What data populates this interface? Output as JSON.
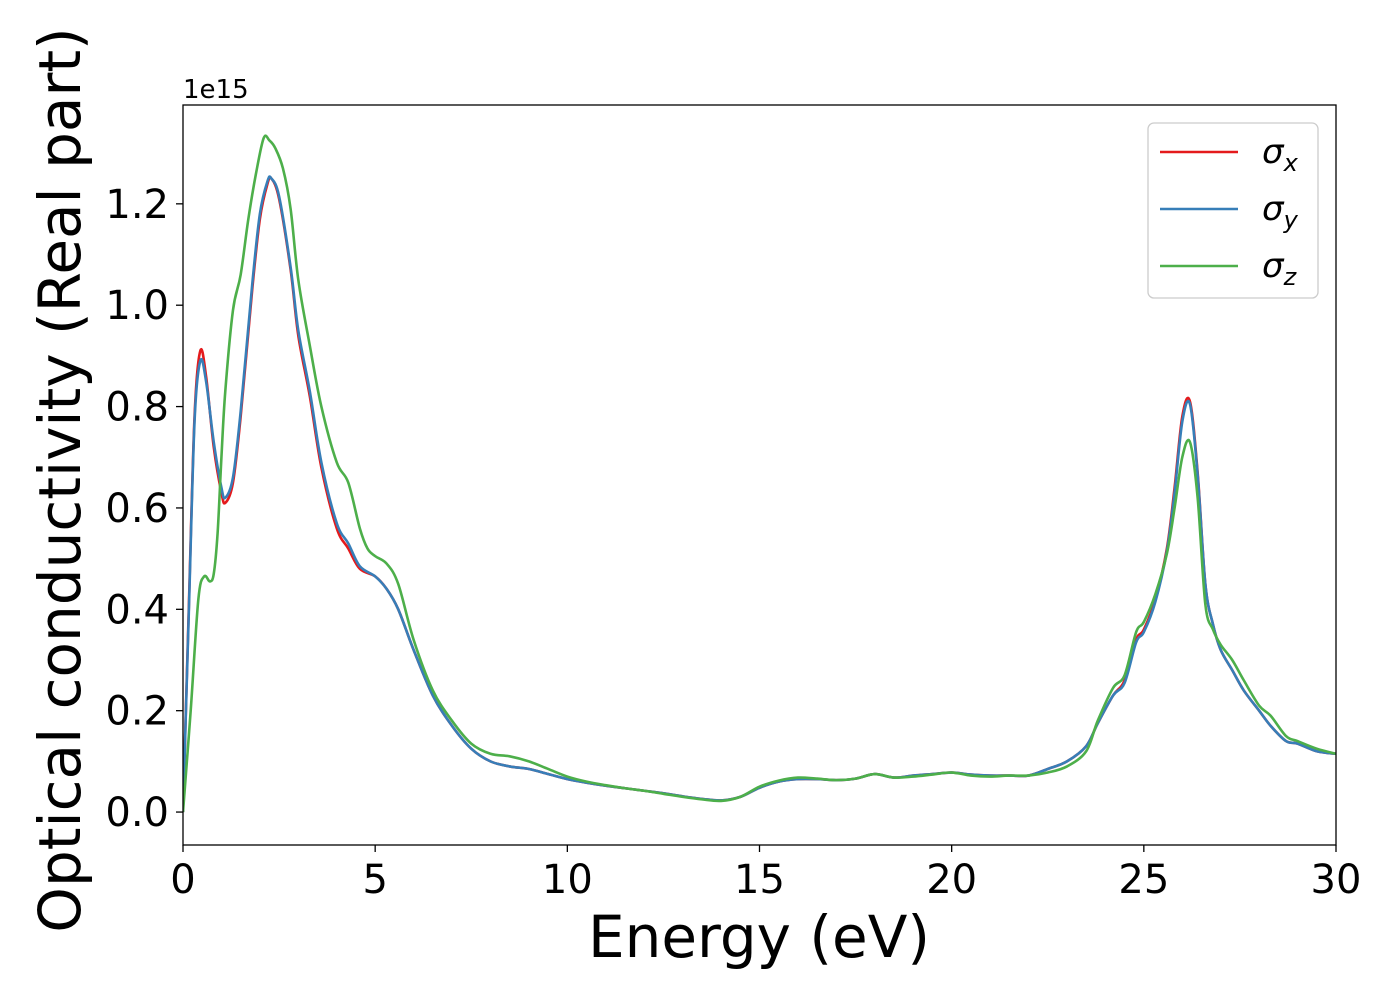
{
  "chart_data": {
    "type": "line",
    "xlabel": "Energy (eV)",
    "ylabel": "Optical conductivity (Real part)",
    "offset_label": "1e15",
    "xlim": [
      0,
      30
    ],
    "ylim": [
      -0.065,
      1.395
    ],
    "xticks": [
      0,
      5,
      10,
      15,
      20,
      25,
      30
    ],
    "xtick_labels": [
      "0",
      "5",
      "10",
      "15",
      "20",
      "25",
      "30"
    ],
    "yticks": [
      0.0,
      0.2,
      0.4,
      0.6,
      0.8,
      1.0,
      1.2
    ],
    "ytick_labels": [
      "0.0",
      "0.2",
      "0.4",
      "0.6",
      "0.8",
      "1.0",
      "1.2"
    ],
    "grid": false,
    "legend_position": "top-right",
    "series": [
      {
        "name": "σx",
        "symbol": "σ",
        "subscript": "x",
        "color": "#e41a1c",
        "x": [
          0,
          0.15,
          0.3,
          0.45,
          0.6,
          0.8,
          1.0,
          1.1,
          1.3,
          1.5,
          1.8,
          2.0,
          2.2,
          2.3,
          2.5,
          2.8,
          3.0,
          3.3,
          3.6,
          4.0,
          4.3,
          4.6,
          5.0,
          5.3,
          5.6,
          6.0,
          6.5,
          7.0,
          7.5,
          8.0,
          8.5,
          9.0,
          9.5,
          10.0,
          10.5,
          11,
          11.5,
          12,
          12.5,
          13,
          13.5,
          14,
          14.5,
          15,
          15.5,
          16,
          16.5,
          17,
          17.5,
          18,
          18.5,
          19,
          19.5,
          20,
          20.5,
          21,
          21.5,
          22,
          22.5,
          23,
          23.5,
          23.8,
          24.2,
          24.5,
          24.8,
          25.0,
          25.3,
          25.6,
          25.8,
          26.0,
          26.2,
          26.4,
          26.6,
          26.8,
          27.0,
          27.3,
          27.6,
          28.0,
          28.3,
          28.7,
          29.0,
          29.5,
          30
        ],
        "y": [
          0,
          0.4,
          0.78,
          0.91,
          0.86,
          0.72,
          0.63,
          0.61,
          0.65,
          0.78,
          1.03,
          1.17,
          1.24,
          1.25,
          1.21,
          1.07,
          0.94,
          0.82,
          0.68,
          0.56,
          0.52,
          0.48,
          0.465,
          0.44,
          0.4,
          0.32,
          0.23,
          0.17,
          0.125,
          0.1,
          0.09,
          0.085,
          0.075,
          0.065,
          0.058,
          0.052,
          0.047,
          0.042,
          0.037,
          0.031,
          0.026,
          0.023,
          0.03,
          0.048,
          0.06,
          0.065,
          0.065,
          0.063,
          0.066,
          0.075,
          0.068,
          0.072,
          0.075,
          0.078,
          0.074,
          0.072,
          0.072,
          0.072,
          0.085,
          0.1,
          0.13,
          0.175,
          0.23,
          0.26,
          0.34,
          0.36,
          0.42,
          0.52,
          0.64,
          0.78,
          0.81,
          0.67,
          0.45,
          0.37,
          0.32,
          0.28,
          0.24,
          0.2,
          0.17,
          0.14,
          0.135,
          0.12,
          0.115
        ]
      },
      {
        "name": "σy",
        "symbol": "σ",
        "subscript": "y",
        "color": "#377eb8",
        "x": [
          0,
          0.15,
          0.3,
          0.45,
          0.6,
          0.8,
          1.0,
          1.1,
          1.3,
          1.5,
          1.8,
          2.0,
          2.2,
          2.3,
          2.5,
          2.8,
          3.0,
          3.3,
          3.6,
          4.0,
          4.3,
          4.6,
          5.0,
          5.3,
          5.6,
          6.0,
          6.5,
          7.0,
          7.5,
          8.0,
          8.5,
          9.0,
          9.5,
          10.0,
          10.5,
          11,
          11.5,
          12,
          12.5,
          13,
          13.5,
          14,
          14.5,
          15,
          15.5,
          16,
          16.5,
          17,
          17.5,
          18,
          18.5,
          19,
          19.5,
          20,
          20.5,
          21,
          21.5,
          22,
          22.5,
          23,
          23.5,
          23.8,
          24.2,
          24.5,
          24.8,
          25.0,
          25.3,
          25.6,
          25.8,
          26.0,
          26.2,
          26.4,
          26.6,
          26.8,
          27.0,
          27.3,
          27.6,
          28.0,
          28.3,
          28.7,
          29.0,
          29.5,
          30
        ],
        "y": [
          0,
          0.39,
          0.77,
          0.89,
          0.85,
          0.73,
          0.64,
          0.62,
          0.66,
          0.79,
          1.04,
          1.18,
          1.245,
          1.25,
          1.215,
          1.075,
          0.95,
          0.83,
          0.69,
          0.57,
          0.53,
          0.485,
          0.465,
          0.44,
          0.4,
          0.32,
          0.23,
          0.17,
          0.125,
          0.1,
          0.09,
          0.085,
          0.075,
          0.065,
          0.058,
          0.052,
          0.047,
          0.042,
          0.037,
          0.031,
          0.026,
          0.023,
          0.03,
          0.048,
          0.06,
          0.065,
          0.065,
          0.063,
          0.066,
          0.075,
          0.068,
          0.072,
          0.075,
          0.078,
          0.074,
          0.072,
          0.072,
          0.072,
          0.085,
          0.1,
          0.13,
          0.175,
          0.23,
          0.255,
          0.335,
          0.355,
          0.415,
          0.515,
          0.63,
          0.77,
          0.805,
          0.665,
          0.45,
          0.37,
          0.32,
          0.28,
          0.24,
          0.2,
          0.17,
          0.14,
          0.135,
          0.12,
          0.115
        ]
      },
      {
        "name": "σz",
        "symbol": "σ",
        "subscript": "z",
        "color": "#4daf4a",
        "x": [
          0,
          0.2,
          0.4,
          0.55,
          0.7,
          0.8,
          0.9,
          1.0,
          1.1,
          1.3,
          1.5,
          1.7,
          1.9,
          2.1,
          2.25,
          2.4,
          2.6,
          2.8,
          3.0,
          3.3,
          3.6,
          4.0,
          4.3,
          4.6,
          4.8,
          5.0,
          5.3,
          5.6,
          6.0,
          6.5,
          7.0,
          7.5,
          8.0,
          8.5,
          9.0,
          9.5,
          10.0,
          10.5,
          11,
          11.5,
          12,
          12.5,
          13,
          13.5,
          14,
          14.5,
          15,
          15.5,
          16,
          16.5,
          17,
          17.5,
          18,
          18.5,
          19,
          19.5,
          20,
          20.5,
          21,
          21.5,
          22,
          22.5,
          23,
          23.5,
          23.8,
          24.2,
          24.5,
          24.8,
          25.0,
          25.3,
          25.6,
          25.8,
          26.0,
          26.2,
          26.4,
          26.6,
          26.8,
          27.0,
          27.3,
          27.6,
          28.0,
          28.3,
          28.7,
          29.0,
          29.5,
          30
        ],
        "y": [
          0,
          0.2,
          0.42,
          0.465,
          0.455,
          0.47,
          0.55,
          0.7,
          0.83,
          0.99,
          1.06,
          1.17,
          1.26,
          1.33,
          1.325,
          1.31,
          1.27,
          1.19,
          1.05,
          0.92,
          0.8,
          0.69,
          0.65,
          0.56,
          0.52,
          0.505,
          0.49,
          0.45,
          0.34,
          0.24,
          0.18,
          0.135,
          0.115,
          0.11,
          0.1,
          0.085,
          0.07,
          0.06,
          0.053,
          0.047,
          0.042,
          0.036,
          0.03,
          0.025,
          0.022,
          0.03,
          0.05,
          0.062,
          0.068,
          0.066,
          0.063,
          0.066,
          0.075,
          0.068,
          0.07,
          0.074,
          0.078,
          0.072,
          0.07,
          0.072,
          0.072,
          0.078,
          0.09,
          0.12,
          0.18,
          0.245,
          0.27,
          0.355,
          0.375,
          0.43,
          0.51,
          0.6,
          0.7,
          0.73,
          0.62,
          0.41,
          0.36,
          0.33,
          0.3,
          0.26,
          0.21,
          0.19,
          0.15,
          0.14,
          0.125,
          0.115
        ]
      }
    ]
  }
}
